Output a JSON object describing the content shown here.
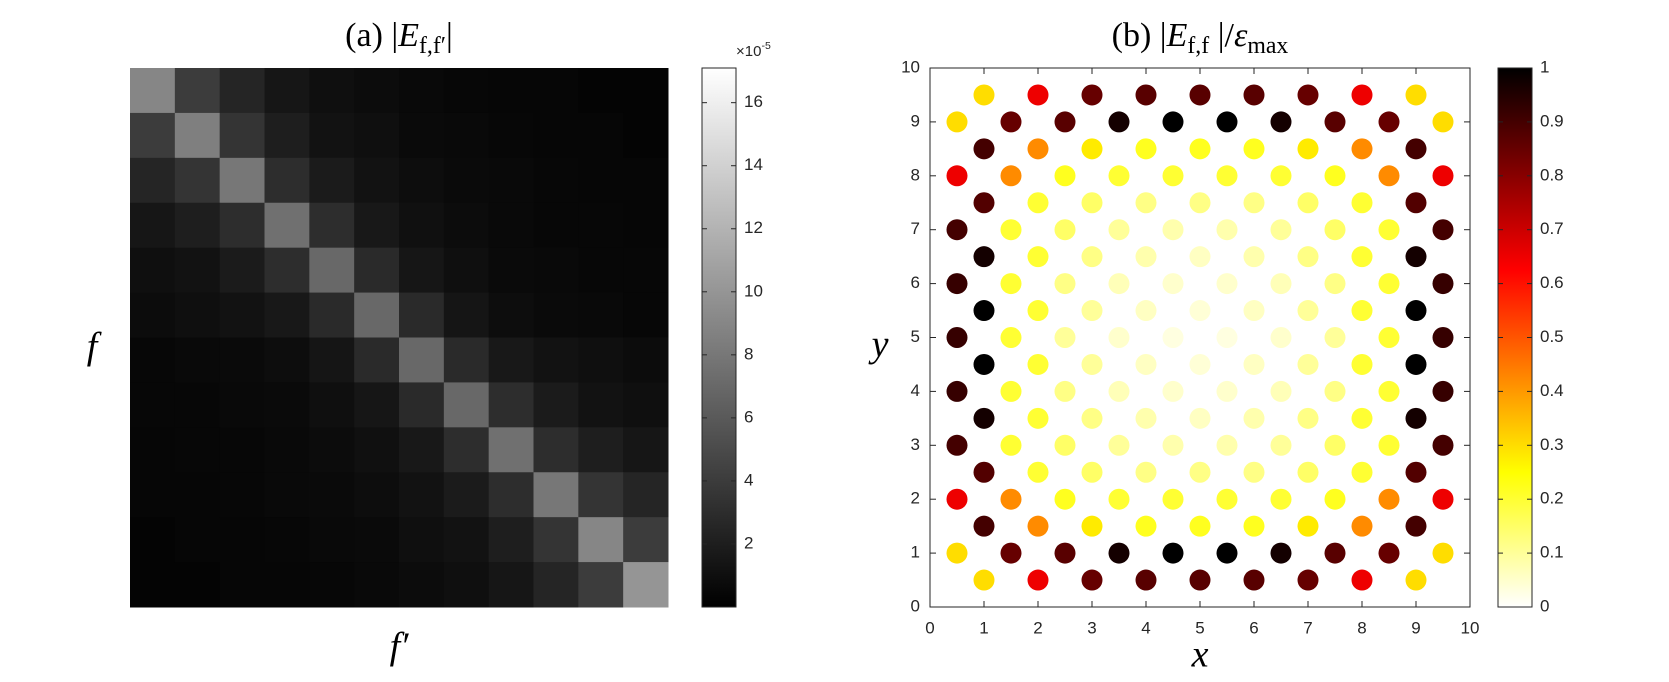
{
  "chart_data": [
    {
      "type": "heatmap",
      "title": [
        {
          "text": "(a) |",
          "style": "normal"
        },
        {
          "text": "E",
          "style": "italic"
        },
        {
          "text": "f,f′",
          "style": "subscript"
        },
        {
          "text": "|",
          "style": "normal"
        }
      ],
      "xlabel": "f′",
      "ylabel": "f",
      "z": [
        [
          9,
          4,
          2.5,
          1.5,
          1,
          0.8,
          0.6,
          0.5,
          0.4,
          0.4,
          0.3,
          0.3
        ],
        [
          4,
          8.5,
          3.5,
          2,
          1.2,
          1,
          0.7,
          0.6,
          0.5,
          0.4,
          0.4,
          0.3
        ],
        [
          2.5,
          3.5,
          8,
          3,
          1.8,
          1.2,
          0.9,
          0.7,
          0.6,
          0.5,
          0.4,
          0.4
        ],
        [
          1.5,
          2,
          3,
          7.5,
          3,
          1.6,
          1.1,
          0.8,
          0.6,
          0.5,
          0.5,
          0.4
        ],
        [
          1,
          1.2,
          1.8,
          3,
          7,
          2.8,
          1.5,
          1,
          0.7,
          0.6,
          0.5,
          0.5
        ],
        [
          0.8,
          1,
          1.2,
          1.6,
          2.8,
          7,
          2.8,
          1.4,
          0.9,
          0.7,
          0.6,
          0.5
        ],
        [
          0.5,
          0.6,
          0.7,
          0.9,
          1.4,
          2.8,
          7,
          2.8,
          1.6,
          1.2,
          1,
          0.8
        ],
        [
          0.5,
          0.5,
          0.6,
          0.7,
          1,
          1.5,
          2.8,
          7,
          3,
          1.8,
          1.2,
          1
        ],
        [
          0.4,
          0.5,
          0.5,
          0.6,
          0.8,
          1.1,
          1.6,
          3,
          7.5,
          3,
          2,
          1.5
        ],
        [
          0.4,
          0.4,
          0.5,
          0.6,
          0.7,
          0.9,
          1.2,
          1.8,
          3,
          8,
          3.5,
          2.5
        ],
        [
          0.3,
          0.4,
          0.4,
          0.5,
          0.6,
          0.7,
          1,
          1.2,
          2,
          3.5,
          9,
          4
        ],
        [
          0.3,
          0.3,
          0.4,
          0.4,
          0.5,
          0.6,
          0.8,
          1,
          1.5,
          2.5,
          4,
          10
        ]
      ],
      "clim": [
        0,
        17.1
      ],
      "cticks": [
        2,
        4,
        6,
        8,
        10,
        12,
        14,
        16
      ],
      "colorbar_exponent": [
        {
          "text": "×10",
          "style": "normal"
        },
        {
          "text": "-5",
          "style": "superscript"
        }
      ],
      "colormap": [
        [
          0,
          "#000000"
        ],
        [
          1,
          "#ffffff"
        ]
      ]
    },
    {
      "type": "scatter",
      "title": [
        {
          "text": "(b) |",
          "style": "normal"
        },
        {
          "text": "E",
          "style": "italic"
        },
        {
          "text": "f,f",
          "style": "subscript"
        },
        {
          "text": " |/",
          "style": "normal"
        },
        {
          "text": "ε",
          "style": "italic"
        },
        {
          "text": "max",
          "style": "subscript"
        }
      ],
      "xlabel": "x",
      "ylabel": "y",
      "xlim": [
        0,
        10
      ],
      "ylim": [
        0,
        10
      ],
      "xticks": [
        0,
        1,
        2,
        3,
        4,
        5,
        6,
        7,
        8,
        9,
        10
      ],
      "yticks": [
        0,
        1,
        2,
        3,
        4,
        5,
        6,
        7,
        8,
        9,
        10
      ],
      "rows": [
        {
          "y": 0.5,
          "x": [
            1,
            2,
            3,
            4,
            5,
            6,
            7,
            8,
            9
          ],
          "values": [
            0.3,
            0.65,
            0.85,
            0.87,
            0.87,
            0.87,
            0.85,
            0.65,
            0.3
          ]
        },
        {
          "y": 1,
          "x": [
            0.5,
            1.5,
            2.5,
            3.5,
            4.5,
            5.5,
            6.5,
            7.5,
            8.5,
            9.5
          ],
          "values": [
            0.3,
            0.85,
            0.87,
            0.97,
            1,
            1,
            0.97,
            0.87,
            0.85,
            0.3
          ]
        },
        {
          "y": 1.5,
          "x": [
            1,
            2,
            3,
            4,
            5,
            6,
            7,
            8,
            9
          ],
          "values": [
            0.9,
            0.42,
            0.28,
            0.22,
            0.22,
            0.22,
            0.28,
            0.42,
            0.9
          ]
        },
        {
          "y": 2,
          "x": [
            0.5,
            1.5,
            2.5,
            3.5,
            4.5,
            5.5,
            6.5,
            7.5,
            8.5,
            9.5
          ],
          "values": [
            0.65,
            0.42,
            0.22,
            0.2,
            0.2,
            0.2,
            0.2,
            0.22,
            0.42,
            0.65
          ]
        },
        {
          "y": 2.5,
          "x": [
            1,
            2,
            3,
            4,
            5,
            6,
            7,
            8,
            9
          ],
          "values": [
            0.88,
            0.2,
            0.15,
            0.12,
            0.12,
            0.12,
            0.15,
            0.2,
            0.88
          ]
        },
        {
          "y": 3,
          "x": [
            0.5,
            1.5,
            2.5,
            3.5,
            4.5,
            5.5,
            6.5,
            7.5,
            8.5,
            9.5
          ],
          "values": [
            0.9,
            0.2,
            0.15,
            0.1,
            0.08,
            0.08,
            0.1,
            0.15,
            0.2,
            0.9
          ]
        },
        {
          "y": 3.5,
          "x": [
            1,
            2,
            3,
            4,
            5,
            6,
            7,
            8,
            9
          ],
          "values": [
            0.97,
            0.2,
            0.12,
            0.08,
            0.06,
            0.08,
            0.12,
            0.2,
            0.97
          ]
        },
        {
          "y": 4,
          "x": [
            0.5,
            1.5,
            2.5,
            3.5,
            4.5,
            5.5,
            6.5,
            7.5,
            8.5,
            9.5
          ],
          "values": [
            0.92,
            0.2,
            0.12,
            0.07,
            0.05,
            0.05,
            0.07,
            0.12,
            0.2,
            0.92
          ]
        },
        {
          "y": 4.5,
          "x": [
            1,
            2,
            3,
            4,
            5,
            6,
            7,
            8,
            9
          ],
          "values": [
            1,
            0.2,
            0.1,
            0.06,
            0.04,
            0.06,
            0.1,
            0.2,
            1
          ]
        },
        {
          "y": 5,
          "x": [
            0.5,
            1.5,
            2.5,
            3.5,
            4.5,
            5.5,
            6.5,
            7.5,
            8.5,
            9.5
          ],
          "values": [
            0.92,
            0.2,
            0.1,
            0.05,
            0.03,
            0.03,
            0.05,
            0.1,
            0.2,
            0.92
          ]
        },
        {
          "y": 5.5,
          "x": [
            1,
            2,
            3,
            4,
            5,
            6,
            7,
            8,
            9
          ],
          "values": [
            1,
            0.2,
            0.1,
            0.06,
            0.04,
            0.06,
            0.1,
            0.2,
            1
          ]
        },
        {
          "y": 6,
          "x": [
            0.5,
            1.5,
            2.5,
            3.5,
            4.5,
            5.5,
            6.5,
            7.5,
            8.5,
            9.5
          ],
          "values": [
            0.92,
            0.2,
            0.12,
            0.07,
            0.05,
            0.05,
            0.07,
            0.12,
            0.2,
            0.92
          ]
        },
        {
          "y": 6.5,
          "x": [
            1,
            2,
            3,
            4,
            5,
            6,
            7,
            8,
            9
          ],
          "values": [
            0.97,
            0.2,
            0.12,
            0.08,
            0.06,
            0.08,
            0.12,
            0.2,
            0.97
          ]
        },
        {
          "y": 7,
          "x": [
            0.5,
            1.5,
            2.5,
            3.5,
            4.5,
            5.5,
            6.5,
            7.5,
            8.5,
            9.5
          ],
          "values": [
            0.9,
            0.2,
            0.15,
            0.1,
            0.08,
            0.08,
            0.1,
            0.15,
            0.2,
            0.9
          ]
        },
        {
          "y": 7.5,
          "x": [
            1,
            2,
            3,
            4,
            5,
            6,
            7,
            8,
            9
          ],
          "values": [
            0.88,
            0.2,
            0.15,
            0.12,
            0.12,
            0.12,
            0.15,
            0.2,
            0.88
          ]
        },
        {
          "y": 8,
          "x": [
            0.5,
            1.5,
            2.5,
            3.5,
            4.5,
            5.5,
            6.5,
            7.5,
            8.5,
            9.5
          ],
          "values": [
            0.65,
            0.42,
            0.22,
            0.2,
            0.2,
            0.2,
            0.2,
            0.22,
            0.42,
            0.65
          ]
        },
        {
          "y": 8.5,
          "x": [
            1,
            2,
            3,
            4,
            5,
            6,
            7,
            8,
            9
          ],
          "values": [
            0.9,
            0.42,
            0.28,
            0.22,
            0.22,
            0.22,
            0.28,
            0.42,
            0.9
          ]
        },
        {
          "y": 9,
          "x": [
            0.5,
            1.5,
            2.5,
            3.5,
            4.5,
            5.5,
            6.5,
            7.5,
            8.5,
            9.5
          ],
          "values": [
            0.3,
            0.85,
            0.87,
            0.97,
            1,
            1,
            0.97,
            0.87,
            0.85,
            0.3
          ]
        },
        {
          "y": 9.5,
          "x": [
            1,
            2,
            3,
            4,
            5,
            6,
            7,
            8,
            9
          ],
          "values": [
            0.3,
            0.65,
            0.85,
            0.87,
            0.87,
            0.87,
            0.85,
            0.65,
            0.3
          ]
        }
      ],
      "clim": [
        0,
        1
      ],
      "cticks": [
        0,
        0.1,
        0.2,
        0.3,
        0.4,
        0.5,
        0.6,
        0.7,
        0.8,
        0.9,
        1
      ],
      "colormap": [
        [
          0,
          "#ffffff"
        ],
        [
          0.25,
          "#ffff00"
        ],
        [
          0.625,
          "#ff0000"
        ],
        [
          1,
          "#000000"
        ]
      ]
    }
  ]
}
